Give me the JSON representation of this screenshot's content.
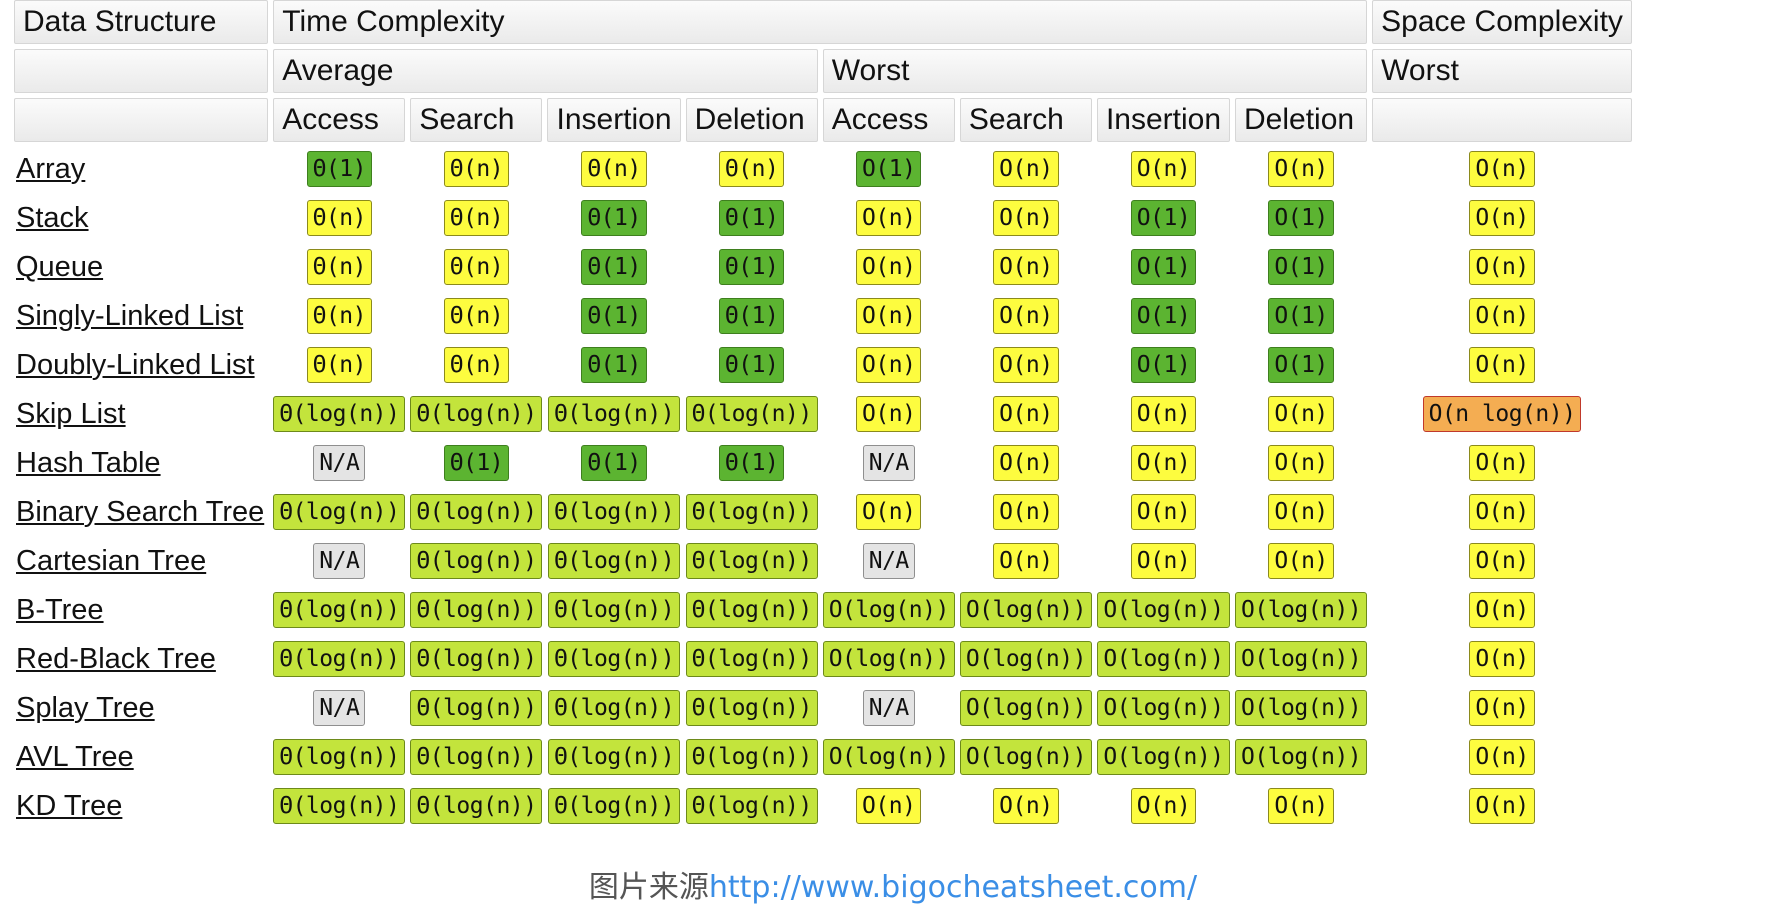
{
  "header": {
    "row1": {
      "data_structure": "Data Structure",
      "time_complexity": "Time Complexity",
      "space_complexity": "Space Complexity"
    },
    "row2": {
      "blank": "",
      "average": "Average",
      "worst": "Worst",
      "space_worst": "Worst"
    },
    "row3": {
      "avg_access": "Access",
      "avg_search": "Search",
      "avg_insertion": "Insertion",
      "avg_deletion": "Deletion",
      "worst_access": "Access",
      "worst_search": "Search",
      "worst_insertion": "Insertion",
      "worst_deletion": "Deletion"
    }
  },
  "legend_colors": {
    "good": "#5cb431",
    "fair": "#c3e43c",
    "bad": "#fdfc3f",
    "horrible": "#f4ad52",
    "na": "#e4e4e4"
  },
  "rows": [
    {
      "name": "Array",
      "cells": [
        {
          "text": "Θ(1)",
          "rating": "good"
        },
        {
          "text": "Θ(n)",
          "rating": "bad"
        },
        {
          "text": "Θ(n)",
          "rating": "bad"
        },
        {
          "text": "Θ(n)",
          "rating": "bad"
        },
        {
          "text": "O(1)",
          "rating": "good"
        },
        {
          "text": "O(n)",
          "rating": "bad"
        },
        {
          "text": "O(n)",
          "rating": "bad"
        },
        {
          "text": "O(n)",
          "rating": "bad"
        },
        {
          "text": "O(n)",
          "rating": "bad"
        }
      ]
    },
    {
      "name": "Stack",
      "cells": [
        {
          "text": "Θ(n)",
          "rating": "bad"
        },
        {
          "text": "Θ(n)",
          "rating": "bad"
        },
        {
          "text": "Θ(1)",
          "rating": "good"
        },
        {
          "text": "Θ(1)",
          "rating": "good"
        },
        {
          "text": "O(n)",
          "rating": "bad"
        },
        {
          "text": "O(n)",
          "rating": "bad"
        },
        {
          "text": "O(1)",
          "rating": "good"
        },
        {
          "text": "O(1)",
          "rating": "good"
        },
        {
          "text": "O(n)",
          "rating": "bad"
        }
      ]
    },
    {
      "name": "Queue",
      "cells": [
        {
          "text": "Θ(n)",
          "rating": "bad"
        },
        {
          "text": "Θ(n)",
          "rating": "bad"
        },
        {
          "text": "Θ(1)",
          "rating": "good"
        },
        {
          "text": "Θ(1)",
          "rating": "good"
        },
        {
          "text": "O(n)",
          "rating": "bad"
        },
        {
          "text": "O(n)",
          "rating": "bad"
        },
        {
          "text": "O(1)",
          "rating": "good"
        },
        {
          "text": "O(1)",
          "rating": "good"
        },
        {
          "text": "O(n)",
          "rating": "bad"
        }
      ]
    },
    {
      "name": "Singly-Linked List",
      "cells": [
        {
          "text": "Θ(n)",
          "rating": "bad"
        },
        {
          "text": "Θ(n)",
          "rating": "bad"
        },
        {
          "text": "Θ(1)",
          "rating": "good"
        },
        {
          "text": "Θ(1)",
          "rating": "good"
        },
        {
          "text": "O(n)",
          "rating": "bad"
        },
        {
          "text": "O(n)",
          "rating": "bad"
        },
        {
          "text": "O(1)",
          "rating": "good"
        },
        {
          "text": "O(1)",
          "rating": "good"
        },
        {
          "text": "O(n)",
          "rating": "bad"
        }
      ]
    },
    {
      "name": "Doubly-Linked List",
      "cells": [
        {
          "text": "Θ(n)",
          "rating": "bad"
        },
        {
          "text": "Θ(n)",
          "rating": "bad"
        },
        {
          "text": "Θ(1)",
          "rating": "good"
        },
        {
          "text": "Θ(1)",
          "rating": "good"
        },
        {
          "text": "O(n)",
          "rating": "bad"
        },
        {
          "text": "O(n)",
          "rating": "bad"
        },
        {
          "text": "O(1)",
          "rating": "good"
        },
        {
          "text": "O(1)",
          "rating": "good"
        },
        {
          "text": "O(n)",
          "rating": "bad"
        }
      ]
    },
    {
      "name": "Skip List",
      "cells": [
        {
          "text": "Θ(log(n))",
          "rating": "fair"
        },
        {
          "text": "Θ(log(n))",
          "rating": "fair"
        },
        {
          "text": "Θ(log(n))",
          "rating": "fair"
        },
        {
          "text": "Θ(log(n))",
          "rating": "fair"
        },
        {
          "text": "O(n)",
          "rating": "bad"
        },
        {
          "text": "O(n)",
          "rating": "bad"
        },
        {
          "text": "O(n)",
          "rating": "bad"
        },
        {
          "text": "O(n)",
          "rating": "bad"
        },
        {
          "text": "O(n log(n))",
          "rating": "horrible"
        }
      ]
    },
    {
      "name": "Hash Table",
      "cells": [
        {
          "text": "N/A",
          "rating": "na"
        },
        {
          "text": "Θ(1)",
          "rating": "good"
        },
        {
          "text": "Θ(1)",
          "rating": "good"
        },
        {
          "text": "Θ(1)",
          "rating": "good"
        },
        {
          "text": "N/A",
          "rating": "na"
        },
        {
          "text": "O(n)",
          "rating": "bad"
        },
        {
          "text": "O(n)",
          "rating": "bad"
        },
        {
          "text": "O(n)",
          "rating": "bad"
        },
        {
          "text": "O(n)",
          "rating": "bad"
        }
      ]
    },
    {
      "name": "Binary Search Tree",
      "cells": [
        {
          "text": "Θ(log(n))",
          "rating": "fair"
        },
        {
          "text": "Θ(log(n))",
          "rating": "fair"
        },
        {
          "text": "Θ(log(n))",
          "rating": "fair"
        },
        {
          "text": "Θ(log(n))",
          "rating": "fair"
        },
        {
          "text": "O(n)",
          "rating": "bad"
        },
        {
          "text": "O(n)",
          "rating": "bad"
        },
        {
          "text": "O(n)",
          "rating": "bad"
        },
        {
          "text": "O(n)",
          "rating": "bad"
        },
        {
          "text": "O(n)",
          "rating": "bad"
        }
      ]
    },
    {
      "name": "Cartesian Tree",
      "cells": [
        {
          "text": "N/A",
          "rating": "na"
        },
        {
          "text": "Θ(log(n))",
          "rating": "fair"
        },
        {
          "text": "Θ(log(n))",
          "rating": "fair"
        },
        {
          "text": "Θ(log(n))",
          "rating": "fair"
        },
        {
          "text": "N/A",
          "rating": "na"
        },
        {
          "text": "O(n)",
          "rating": "bad"
        },
        {
          "text": "O(n)",
          "rating": "bad"
        },
        {
          "text": "O(n)",
          "rating": "bad"
        },
        {
          "text": "O(n)",
          "rating": "bad"
        }
      ]
    },
    {
      "name": "B-Tree",
      "cells": [
        {
          "text": "Θ(log(n))",
          "rating": "fair"
        },
        {
          "text": "Θ(log(n))",
          "rating": "fair"
        },
        {
          "text": "Θ(log(n))",
          "rating": "fair"
        },
        {
          "text": "Θ(log(n))",
          "rating": "fair"
        },
        {
          "text": "O(log(n))",
          "rating": "fair"
        },
        {
          "text": "O(log(n))",
          "rating": "fair"
        },
        {
          "text": "O(log(n))",
          "rating": "fair"
        },
        {
          "text": "O(log(n))",
          "rating": "fair"
        },
        {
          "text": "O(n)",
          "rating": "bad"
        }
      ]
    },
    {
      "name": "Red-Black Tree",
      "cells": [
        {
          "text": "Θ(log(n))",
          "rating": "fair"
        },
        {
          "text": "Θ(log(n))",
          "rating": "fair"
        },
        {
          "text": "Θ(log(n))",
          "rating": "fair"
        },
        {
          "text": "Θ(log(n))",
          "rating": "fair"
        },
        {
          "text": "O(log(n))",
          "rating": "fair"
        },
        {
          "text": "O(log(n))",
          "rating": "fair"
        },
        {
          "text": "O(log(n))",
          "rating": "fair"
        },
        {
          "text": "O(log(n))",
          "rating": "fair"
        },
        {
          "text": "O(n)",
          "rating": "bad"
        }
      ]
    },
    {
      "name": "Splay Tree",
      "cells": [
        {
          "text": "N/A",
          "rating": "na"
        },
        {
          "text": "Θ(log(n))",
          "rating": "fair"
        },
        {
          "text": "Θ(log(n))",
          "rating": "fair"
        },
        {
          "text": "Θ(log(n))",
          "rating": "fair"
        },
        {
          "text": "N/A",
          "rating": "na"
        },
        {
          "text": "O(log(n))",
          "rating": "fair"
        },
        {
          "text": "O(log(n))",
          "rating": "fair"
        },
        {
          "text": "O(log(n))",
          "rating": "fair"
        },
        {
          "text": "O(n)",
          "rating": "bad"
        }
      ]
    },
    {
      "name": "AVL Tree",
      "cells": [
        {
          "text": "Θ(log(n))",
          "rating": "fair"
        },
        {
          "text": "Θ(log(n))",
          "rating": "fair"
        },
        {
          "text": "Θ(log(n))",
          "rating": "fair"
        },
        {
          "text": "Θ(log(n))",
          "rating": "fair"
        },
        {
          "text": "O(log(n))",
          "rating": "fair"
        },
        {
          "text": "O(log(n))",
          "rating": "fair"
        },
        {
          "text": "O(log(n))",
          "rating": "fair"
        },
        {
          "text": "O(log(n))",
          "rating": "fair"
        },
        {
          "text": "O(n)",
          "rating": "bad"
        }
      ]
    },
    {
      "name": "KD Tree",
      "cells": [
        {
          "text": "Θ(log(n))",
          "rating": "fair"
        },
        {
          "text": "Θ(log(n))",
          "rating": "fair"
        },
        {
          "text": "Θ(log(n))",
          "rating": "fair"
        },
        {
          "text": "Θ(log(n))",
          "rating": "fair"
        },
        {
          "text": "O(n)",
          "rating": "bad"
        },
        {
          "text": "O(n)",
          "rating": "bad"
        },
        {
          "text": "O(n)",
          "rating": "bad"
        },
        {
          "text": "O(n)",
          "rating": "bad"
        },
        {
          "text": "O(n)",
          "rating": "bad"
        }
      ]
    }
  ],
  "caption": {
    "prefix": "图片来源",
    "link": "http://www.bigocheatsheet.com/"
  }
}
